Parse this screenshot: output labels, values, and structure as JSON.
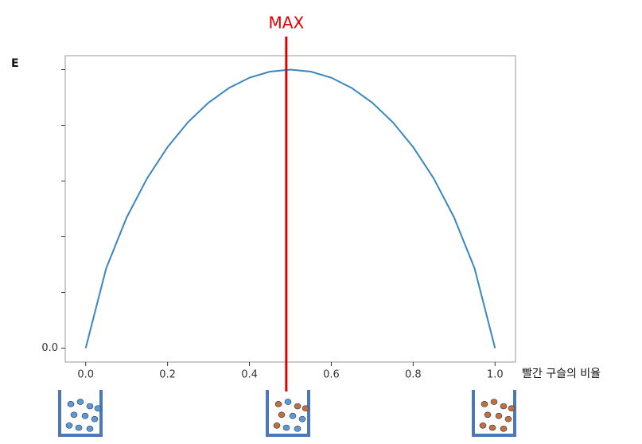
{
  "chart_data": {
    "type": "line",
    "ylabel": "E",
    "xlabel": "빨간 구슬의 비율",
    "annotation": {
      "text": "MAX",
      "x": 0.49,
      "color": "#e00000"
    },
    "x": [
      0,
      0.05,
      0.1,
      0.15,
      0.2,
      0.25,
      0.3,
      0.35,
      0.4,
      0.45,
      0.5,
      0.55,
      0.6,
      0.65,
      0.7,
      0.75,
      0.8,
      0.85,
      0.9,
      0.95,
      1
    ],
    "series": [
      {
        "color": "#3a86c0",
        "values": [
          0,
          0.2864,
          0.469,
          0.6098,
          0.7219,
          0.8113,
          0.8813,
          0.9341,
          0.971,
          0.9928,
          1,
          0.9928,
          0.971,
          0.9341,
          0.8813,
          0.8113,
          0.7219,
          0.6098,
          0.469,
          0.2864,
          0
        ]
      }
    ],
    "xlim": [
      -0.05,
      1.05
    ],
    "ylim": [
      -0.05,
      1.05
    ],
    "xticks": [
      {
        "value": 0,
        "label": "0.0"
      },
      0.2,
      0.4,
      0.6,
      0.8,
      {
        "value": 1,
        "label": "1.0"
      }
    ],
    "yticks": [
      {
        "value": 0,
        "label": "0.0"
      }
    ],
    "yminor_ticks": [
      0.2,
      0.4,
      0.6,
      0.8,
      1
    ]
  }
}
